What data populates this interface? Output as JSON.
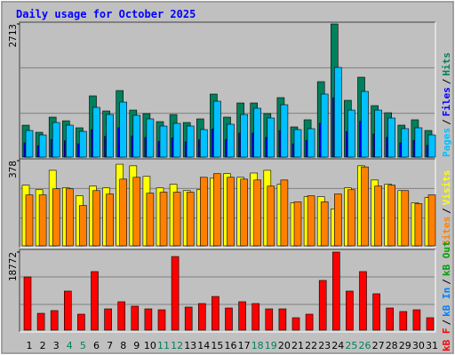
{
  "chart_data": {
    "type": "bar",
    "title": "Daily usage for October 2025",
    "categories": [
      "1",
      "2",
      "3",
      "4",
      "5",
      "6",
      "7",
      "8",
      "9",
      "10",
      "11",
      "12",
      "13",
      "14",
      "15",
      "16",
      "17",
      "18",
      "19",
      "20",
      "21",
      "22",
      "23",
      "24",
      "25",
      "26",
      "27",
      "28",
      "29",
      "30",
      "31"
    ],
    "category_colors": [
      "#000000",
      "#000000",
      "#000000",
      "#00805c",
      "#00805c",
      "#000000",
      "#000000",
      "#000000",
      "#000000",
      "#000000",
      "#00805c",
      "#00805c",
      "#000000",
      "#000000",
      "#000000",
      "#000000",
      "#000000",
      "#00805c",
      "#00805c",
      "#000000",
      "#000000",
      "#000000",
      "#000000",
      "#000000",
      "#00805c",
      "#00805c",
      "#000000",
      "#000000",
      "#000000",
      "#000000",
      "#000000"
    ],
    "panels": [
      {
        "ylim": [
          0,
          2713
        ],
        "yticks": [
          2713
        ],
        "legend_separator": "/",
        "series": [
          {
            "name": "Hits",
            "color": "#00805c",
            "values": [
              650,
              506,
              814,
              740,
              597,
              1248,
              940,
              1356,
              958,
              886,
              723,
              868,
              705,
              778,
              1284,
              814,
              1103,
              1103,
              886,
              1212,
              615,
              760,
              1537,
              2713,
              1157,
              1628,
              1049,
              904,
              651,
              760,
              542
            ]
          },
          {
            "name": "Files",
            "color": "#0000ff",
            "values": [
              290,
              230,
              360,
              330,
              270,
              560,
              420,
              600,
              430,
              400,
              320,
              390,
              310,
              350,
              570,
              360,
              490,
              490,
              400,
              540,
              270,
              340,
              690,
              1210,
              520,
              730,
              470,
              400,
              290,
              340,
              240
            ]
          },
          {
            "name": "Pages",
            "color": "#00c0ff",
            "values": [
              542,
              452,
              705,
              651,
              524,
              1013,
              868,
              1121,
              850,
              778,
              633,
              687,
              633,
              561,
              1139,
              669,
              868,
              995,
              796,
              1067,
              561,
              579,
              1284,
              1827,
              958,
              1338,
              958,
              796,
              579,
              597,
              452
            ]
          }
        ]
      },
      {
        "ylim": [
          0,
          378
        ],
        "yticks": [
          378
        ],
        "legend_separator": "/",
        "series": [
          {
            "name": "Visits",
            "color": "#ffff00",
            "values": [
              269,
              249,
              335,
              257,
              222,
              265,
              257,
              362,
              355,
              308,
              257,
              273,
              245,
              249,
              300,
              320,
              304,
              323,
              335,
              273,
              191,
              218,
              218,
              164,
              257,
              355,
              292,
              273,
              245,
              191,
              214
            ]
          },
          {
            "name": "Sites",
            "color": "#ff8000",
            "values": [
              226,
              226,
              253,
              253,
              179,
              245,
              230,
              296,
              304,
              234,
              238,
              238,
              238,
              304,
              320,
              304,
              296,
              292,
              265,
              292,
              195,
              222,
              195,
              230,
              249,
              350,
              265,
              269,
              245,
              187,
              226
            ]
          }
        ]
      },
      {
        "ylim": [
          0,
          18772
        ],
        "yticks": [
          18772
        ],
        "legend_separator": "/",
        "series": [
          {
            "name": "kB F",
            "color": "#ff0000",
            "values": [
              12800,
              4050,
              4700,
              9390,
              3840,
              14080,
              5120,
              6830,
              5760,
              5120,
              4900,
              17700,
              5550,
              6400,
              8100,
              5330,
              6830,
              6400,
              5120,
              5120,
              2990,
              3840,
              11950,
              18772,
              9390,
              14080,
              8750,
              5330,
              4480,
              4900,
              2990
            ]
          }
        ],
        "legend_only": [
          {
            "name": "kB In",
            "color": "#0080ff"
          },
          {
            "name": "kB Out",
            "color": "#00a000"
          }
        ]
      }
    ]
  }
}
